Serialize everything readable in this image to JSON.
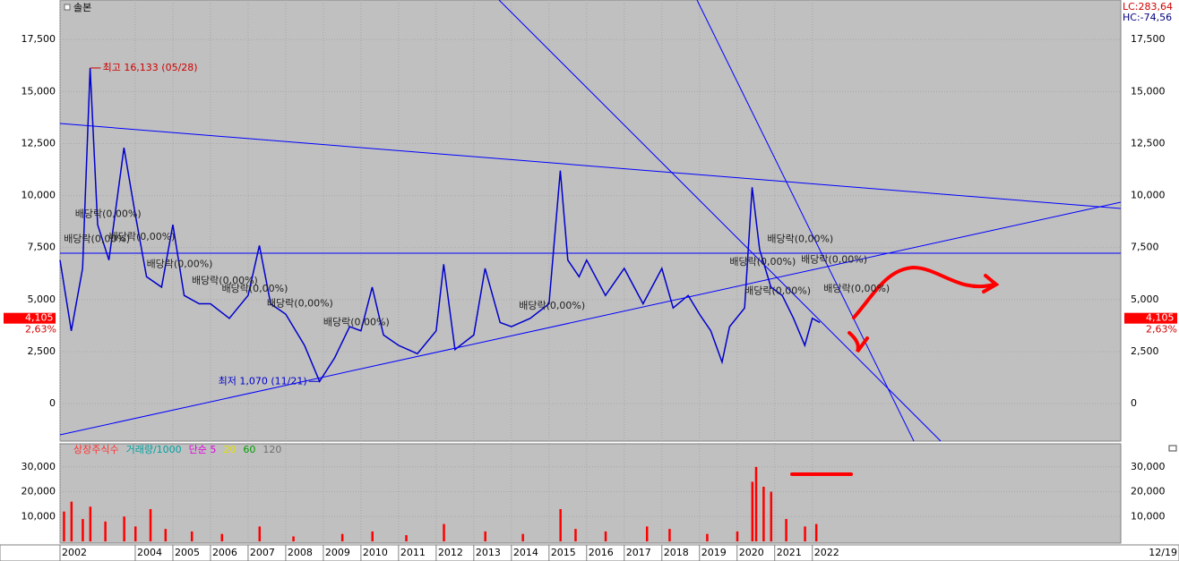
{
  "chart_data": [
    {
      "type": "line",
      "title": "솔본",
      "color": "#0000cc",
      "x": [
        2002.0,
        2002.3,
        2002.6,
        2002.8,
        2003.0,
        2003.3,
        2003.7,
        2004.0,
        2004.3,
        2004.7,
        2005.0,
        2005.3,
        2005.7,
        2006.0,
        2006.5,
        2007.0,
        2007.3,
        2007.6,
        2008.0,
        2008.5,
        2008.9,
        2009.3,
        2009.7,
        2010.0,
        2010.3,
        2010.6,
        2011.0,
        2011.5,
        2012.0,
        2012.2,
        2012.5,
        2013.0,
        2013.3,
        2013.7,
        2014.0,
        2014.5,
        2015.0,
        2015.3,
        2015.5,
        2015.8,
        2016.0,
        2016.5,
        2017.0,
        2017.5,
        2018.0,
        2018.3,
        2018.7,
        2019.0,
        2019.3,
        2019.6,
        2019.8,
        2020.2,
        2020.4,
        2020.6,
        2020.9,
        2021.2,
        2021.5,
        2021.8,
        2022.0,
        2022.2
      ],
      "values": [
        6900,
        3500,
        6500,
        16133,
        8600,
        6900,
        12300,
        9100,
        6100,
        5600,
        8600,
        5200,
        4800,
        4800,
        4100,
        5200,
        7600,
        4800,
        4300,
        2800,
        1070,
        2200,
        3700,
        3500,
        5600,
        3300,
        2800,
        2400,
        3500,
        6700,
        2600,
        3300,
        6500,
        3900,
        3700,
        4100,
        4800,
        11200,
        6900,
        6100,
        6900,
        5200,
        6500,
        4800,
        6500,
        4600,
        5200,
        4300,
        3500,
        2000,
        3700,
        4600,
        10400,
        7400,
        5600,
        5200,
        4100,
        2800,
        4100,
        3900
      ],
      "xlim": [
        2002,
        2030.2
      ],
      "xticks": [
        2002,
        2004,
        2005,
        2006,
        2007,
        2008,
        2009,
        2010,
        2011,
        2012,
        2013,
        2014,
        2015,
        2016,
        2017,
        2018,
        2019,
        2020,
        2021,
        2022
      ],
      "ylim": [
        -1800,
        19400
      ],
      "yticks": [
        0,
        {
          "value": 2500,
          "label": "2,500"
        },
        {
          "value": 5000,
          "label": "5,000"
        },
        {
          "value": 7500,
          "label": "7,500"
        },
        {
          "value": 10000,
          "label": "10,000"
        },
        {
          "value": 12500,
          "label": "12,500"
        },
        {
          "value": 15000,
          "label": "15,000"
        },
        {
          "value": 17500,
          "label": "17,500"
        }
      ],
      "high": {
        "text": "최고 16,133 (05/28)",
        "x": 2002.8,
        "value": 16133
      },
      "low": {
        "text": "최저 1,070 (11/21)",
        "x": 2008.9,
        "value": 1070
      },
      "current": {
        "value": 4105,
        "label": "4,105"
      },
      "change": "2,63%",
      "lc": "LC:283,64",
      "hc": "HC:-74,56",
      "end_label": "12/19",
      "dividends": [
        {
          "text": "배당락(0,00%)",
          "x": 2002.1,
          "y": 7900
        },
        {
          "text": "배당락(0,00%)",
          "x": 2002.4,
          "y": 9100
        },
        {
          "text": "배당락(0,00%)",
          "x": 2003.3,
          "y": 8000
        },
        {
          "text": "배당락(0,00%)",
          "x": 2004.3,
          "y": 6700
        },
        {
          "text": "배당락(0,00%)",
          "x": 2005.5,
          "y": 5900
        },
        {
          "text": "배당락(0,00%)",
          "x": 2006.3,
          "y": 5500
        },
        {
          "text": "배당락(0,00%)",
          "x": 2007.5,
          "y": 4800
        },
        {
          "text": "배당락(0,00%)",
          "x": 2009.0,
          "y": 3900
        },
        {
          "text": "배당락(0,00%)",
          "x": 2014.2,
          "y": 4700
        },
        {
          "text": "배당락(0,00%)",
          "x": 2019.8,
          "y": 6800
        },
        {
          "text": "배당락(0,00%)",
          "x": 2020.2,
          "y": 5400
        },
        {
          "text": "배당락(0,00%)",
          "x": 2020.8,
          "y": 7900
        },
        {
          "text": "배당락(0,00%)",
          "x": 2021.7,
          "y": 6900
        },
        {
          "text": "배당락(0,00%)",
          "x": 2022.3,
          "y": 5500
        }
      ]
    },
    {
      "type": "bar",
      "color": "#ff0000",
      "legend": [
        {
          "text": "상장주식수",
          "color": "#ff3030"
        },
        {
          "text": "거래량/1000",
          "color": "#00a0a0"
        },
        {
          "text": "단순 5",
          "color": "#e000e0"
        },
        {
          "text": "20",
          "color": "#e0e000"
        },
        {
          "text": "60",
          "color": "#00a000"
        },
        {
          "text": "120",
          "color": "#707070"
        }
      ],
      "x": [
        2002.1,
        2002.3,
        2002.6,
        2002.8,
        2003.2,
        2003.7,
        2004.0,
        2004.4,
        2004.8,
        2005.5,
        2006.3,
        2007.3,
        2008.2,
        2009.5,
        2010.3,
        2011.2,
        2012.2,
        2013.3,
        2014.3,
        2015.3,
        2015.7,
        2016.5,
        2017.6,
        2018.2,
        2019.2,
        2020.0,
        2020.4,
        2020.5,
        2020.7,
        2020.9,
        2021.3,
        2021.8,
        2022.1
      ],
      "values": [
        12000,
        16000,
        9000,
        14000,
        8000,
        10000,
        6000,
        13000,
        5000,
        4000,
        3000,
        6000,
        2000,
        3000,
        4000,
        2500,
        7000,
        4000,
        3000,
        13000,
        5000,
        4000,
        6000,
        5000,
        3000,
        4000,
        24000,
        30000,
        22000,
        20000,
        9000,
        6000,
        7000
      ],
      "xlim": [
        2002,
        2030.2
      ],
      "ylim": [
        -700,
        39300
      ],
      "yticks": [
        {
          "value": 10000,
          "label": "10,000"
        },
        {
          "value": 20000,
          "label": "20,000"
        },
        {
          "value": 30000,
          "label": "30,000"
        }
      ]
    }
  ]
}
